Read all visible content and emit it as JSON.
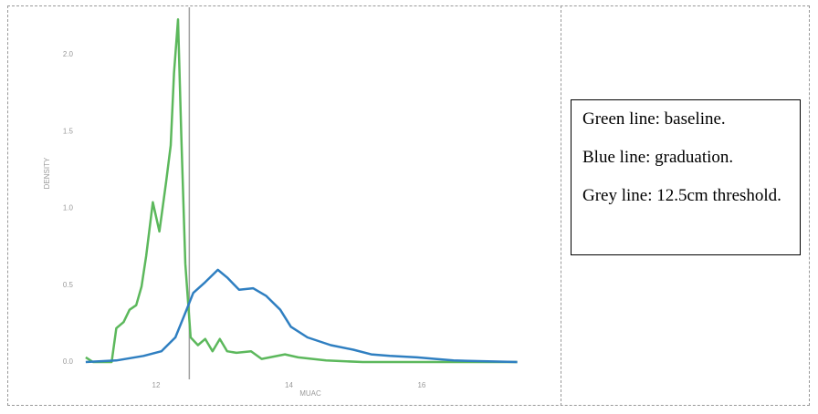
{
  "chart_data": {
    "type": "line",
    "xlabel": "MUAC",
    "ylabel": "DENSITY",
    "xlim": [
      10.9,
      17.5
    ],
    "ylim": [
      0,
      2.3
    ],
    "xticks": [
      12,
      14,
      16
    ],
    "yticks": [
      {
        "value": 0,
        "label": "0.0"
      },
      {
        "value": 0.5,
        "label": "0.5"
      },
      {
        "value": 1,
        "label": "1.0"
      },
      {
        "value": 1.5,
        "label": "1.5"
      },
      {
        "value": 2,
        "label": "2.0"
      }
    ],
    "vlines": [
      {
        "x": 12.5,
        "color": "#a0a0a0"
      }
    ],
    "series": [
      {
        "name": "baseline",
        "color": "#5cb85c",
        "x": [
          10.94,
          11.05,
          11.33,
          11.4,
          11.51,
          11.6,
          11.7,
          11.78,
          11.85,
          11.95,
          12.05,
          12.15,
          12.22,
          12.27,
          12.33,
          12.38,
          12.44,
          12.52,
          12.63,
          12.74,
          12.85,
          12.96,
          13.07,
          13.21,
          13.43,
          13.59,
          13.94,
          14.14,
          14.56,
          15.11,
          17.44
        ],
        "values": [
          0.03,
          0,
          0,
          0.22,
          0.26,
          0.34,
          0.37,
          0.49,
          0.69,
          1.04,
          0.85,
          1.17,
          1.41,
          1.88,
          2.23,
          1.47,
          0.64,
          0.16,
          0.11,
          0.15,
          0.07,
          0.15,
          0.07,
          0.06,
          0.07,
          0.02,
          0.05,
          0.03,
          0.01,
          0,
          0
        ]
      },
      {
        "name": "graduation",
        "color": "#2f7fc1",
        "x": [
          10.94,
          11.4,
          11.81,
          12.08,
          12.29,
          12.43,
          12.56,
          12.74,
          12.93,
          13.07,
          13.25,
          13.46,
          13.66,
          13.87,
          14.03,
          14.28,
          14.63,
          14.97,
          15.24,
          15.52,
          15.93,
          16.21,
          16.48,
          17.44
        ],
        "values": [
          0,
          0.01,
          0.04,
          0.07,
          0.16,
          0.31,
          0.45,
          0.52,
          0.6,
          0.55,
          0.47,
          0.48,
          0.43,
          0.34,
          0.23,
          0.16,
          0.11,
          0.08,
          0.05,
          0.04,
          0.03,
          0.02,
          0.01,
          0
        ]
      }
    ],
    "notes": [
      "Green line: baseline.",
      "Blue line: graduation.",
      "Grey line: 12.5cm threshold."
    ]
  }
}
